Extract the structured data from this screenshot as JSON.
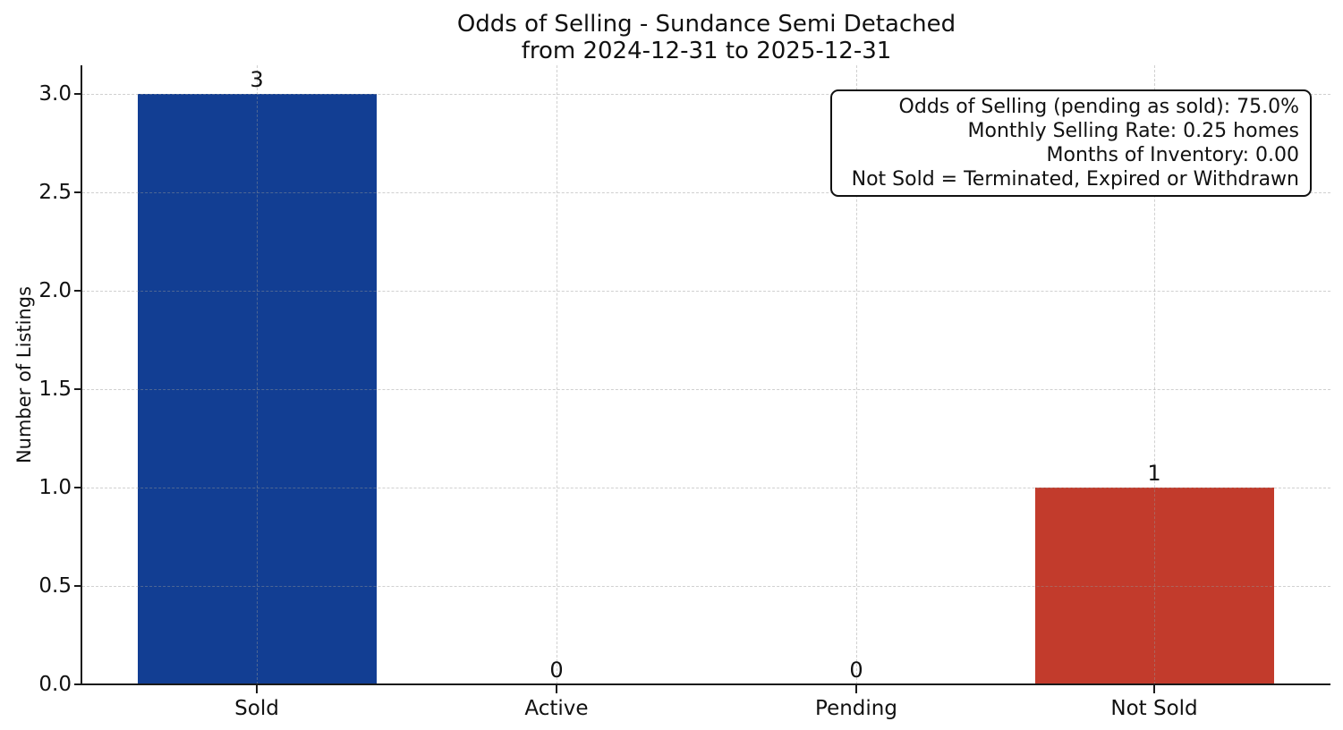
{
  "chart_data": {
    "type": "bar",
    "title": "Odds of Selling - Sundance Semi Detached",
    "subtitle": "from 2024-12-31 to 2025-12-31",
    "categories": [
      "Sold",
      "Active",
      "Pending",
      "Not Sold"
    ],
    "values": [
      3,
      0,
      0,
      1
    ],
    "value_labels": [
      "3",
      "0",
      "0",
      "1"
    ],
    "bar_colors": [
      "#123e93",
      null,
      null,
      "#c23b2c"
    ],
    "ylabel": "Number of Listings",
    "yticks": [
      "0.0",
      "0.5",
      "1.0",
      "1.5",
      "2.0",
      "2.5",
      "3.0"
    ],
    "ylim": [
      0,
      3.15
    ],
    "grid": {
      "style": "dashed",
      "axes": "both",
      "color": "#dcdcdc"
    },
    "legend": "none",
    "spine_color": "#1a1a1a",
    "text_color": "#111111",
    "annotation_lines": [
      "Odds of Selling (pending as sold): 75.0%",
      "Monthly Selling Rate: 0.25 homes",
      "Months of Inventory: 0.00",
      "Not Sold = Terminated, Expired or Withdrawn"
    ]
  }
}
